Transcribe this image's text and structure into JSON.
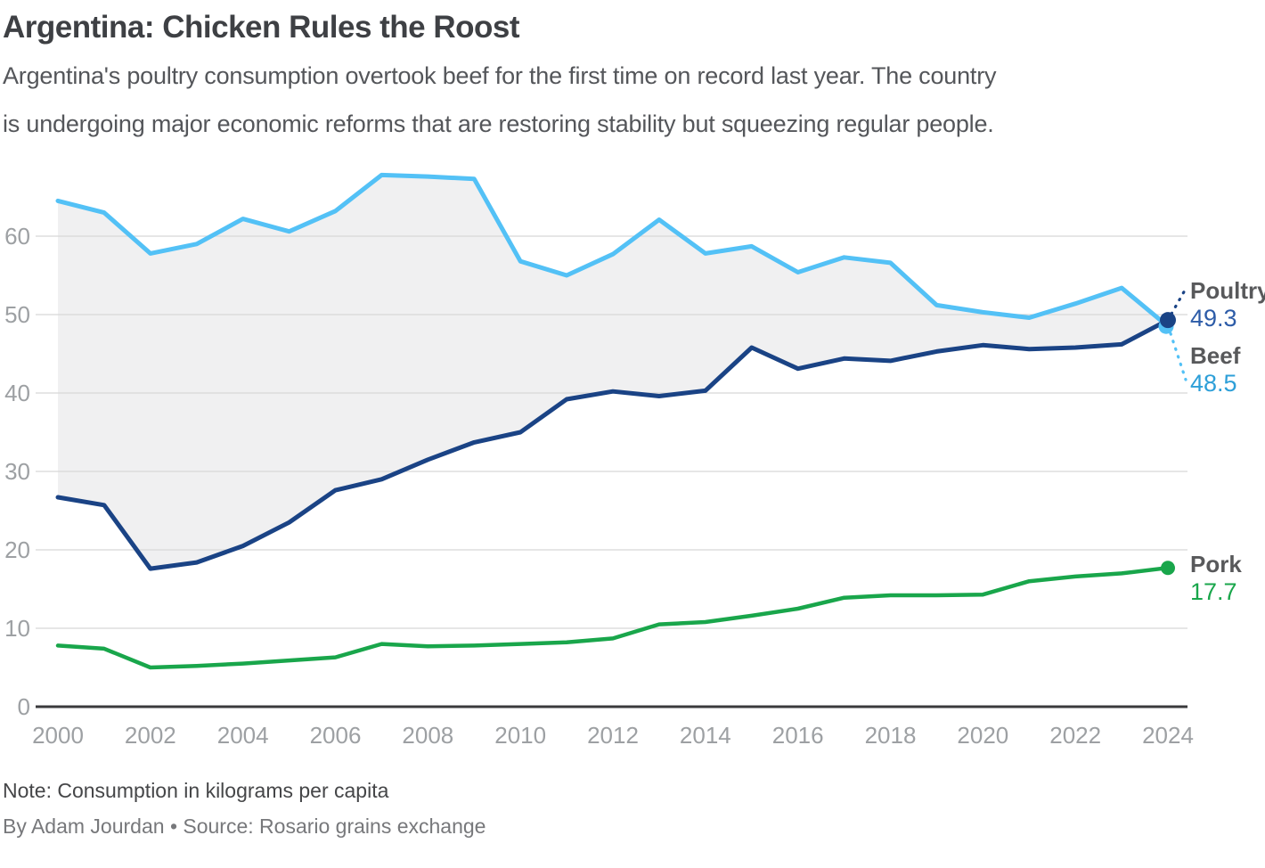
{
  "header": {
    "title": "Argentina: Chicken Rules the Roost",
    "subtitle_line1": "Argentina's poultry consumption overtook beef for the first time on record last year. The country",
    "subtitle_line2": "is undergoing major economic reforms that are restoring stability but squeezing regular people."
  },
  "chart_data": {
    "type": "line",
    "title": "Argentina: Chicken Rules the Roost",
    "x": [
      2000,
      2001,
      2002,
      2003,
      2004,
      2005,
      2006,
      2007,
      2008,
      2009,
      2010,
      2011,
      2012,
      2013,
      2014,
      2015,
      2016,
      2017,
      2018,
      2019,
      2020,
      2021,
      2022,
      2023,
      2024
    ],
    "series": [
      {
        "name": "Beef",
        "color": "#53C1F6",
        "value_color": "#2D9FD8",
        "end_value": 48.5,
        "values": [
          64.5,
          63.0,
          57.8,
          59.0,
          62.2,
          60.6,
          63.2,
          67.8,
          67.6,
          67.3,
          56.8,
          55.0,
          57.7,
          62.1,
          57.8,
          58.7,
          55.4,
          57.3,
          56.6,
          51.2,
          50.3,
          49.6,
          51.4,
          53.4,
          48.5
        ]
      },
      {
        "name": "Poultry",
        "color": "#1A4385",
        "value_color": "#2D5CA8",
        "end_value": 49.3,
        "values": [
          26.7,
          25.7,
          17.6,
          18.4,
          20.5,
          23.5,
          27.6,
          29.0,
          31.5,
          33.7,
          35.0,
          39.2,
          40.2,
          39.6,
          40.3,
          45.8,
          43.1,
          44.4,
          44.1,
          45.3,
          46.1,
          45.6,
          45.8,
          46.2,
          49.3
        ]
      },
      {
        "name": "Pork",
        "color": "#19A64B",
        "value_color": "#19A64B",
        "end_value": 17.7,
        "values": [
          7.8,
          7.4,
          5.0,
          5.2,
          5.5,
          5.9,
          6.3,
          8.0,
          7.7,
          7.8,
          8.0,
          8.2,
          8.7,
          10.5,
          10.8,
          11.6,
          12.5,
          13.9,
          14.2,
          14.2,
          14.3,
          16.0,
          16.6,
          17.0,
          17.7
        ]
      }
    ],
    "yticks": [
      0,
      10,
      20,
      30,
      40,
      50,
      60
    ],
    "xticks": [
      2000,
      2002,
      2004,
      2006,
      2008,
      2010,
      2012,
      2014,
      2016,
      2018,
      2020,
      2022,
      2024
    ],
    "ylim": [
      0,
      70
    ],
    "grid": "horizontal",
    "legend_position": "right-edge-labels",
    "band_fill_between": [
      "Beef",
      "Poultry"
    ],
    "band_color": "#F0F0F1",
    "colors": {
      "axis": "#3A3A3C",
      "grid": "#D8D8D8",
      "tick_label": "#9DA0A3"
    }
  },
  "annotations": {
    "poultry_label": "Poultry",
    "poultry_value": "49.3",
    "beef_label": "Beef",
    "beef_value": "48.5",
    "pork_label": "Pork",
    "pork_value": "17.7"
  },
  "footer": {
    "note": "Note: Consumption in kilograms per capita",
    "byline": "By Adam Jourdan • Source: Rosario grains exchange"
  }
}
